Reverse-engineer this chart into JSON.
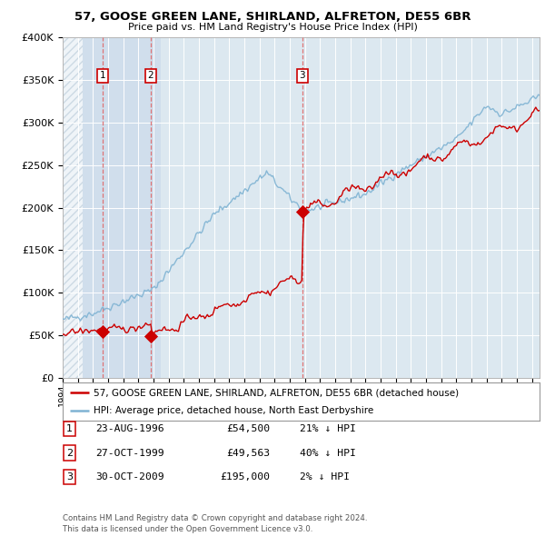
{
  "title": "57, GOOSE GREEN LANE, SHIRLAND, ALFRETON, DE55 6BR",
  "subtitle": "Price paid vs. HM Land Registry's House Price Index (HPI)",
  "fig_bg": "#ffffff",
  "plot_bg": "#dce8f0",
  "hatch_color": "#b0c4d4",
  "highlight_bg": "#ccdaeb",
  "transactions": [
    {
      "price": 54500,
      "label": "1",
      "x": 1996.646
    },
    {
      "price": 49563,
      "label": "2",
      "x": 1999.822
    },
    {
      "price": 195000,
      "label": "3",
      "x": 2009.829
    }
  ],
  "legend_entries": [
    "57, GOOSE GREEN LANE, SHIRLAND, ALFRETON, DE55 6BR (detached house)",
    "HPI: Average price, detached house, North East Derbyshire"
  ],
  "table_rows": [
    {
      "num": "1",
      "date": "23-AUG-1996",
      "price": "£54,500",
      "hpi": "21% ↓ HPI"
    },
    {
      "num": "2",
      "date": "27-OCT-1999",
      "price": "£49,563",
      "hpi": "40% ↓ HPI"
    },
    {
      "num": "3",
      "date": "30-OCT-2009",
      "price": "£195,000",
      "hpi": "2% ↓ HPI"
    }
  ],
  "footer": "Contains HM Land Registry data © Crown copyright and database right 2024.\nThis data is licensed under the Open Government Licence v3.0.",
  "xmin": 1994,
  "xmax": 2025.5,
  "ymin": 0,
  "ymax": 400000,
  "yticks": [
    0,
    50000,
    100000,
    150000,
    200000,
    250000,
    300000,
    350000,
    400000
  ],
  "transaction_color": "#cc0000",
  "hpi_color": "#7fb3d3",
  "vline_color": "#e06060",
  "hatch_end": 1995.3,
  "highlight_end": 2000.5
}
